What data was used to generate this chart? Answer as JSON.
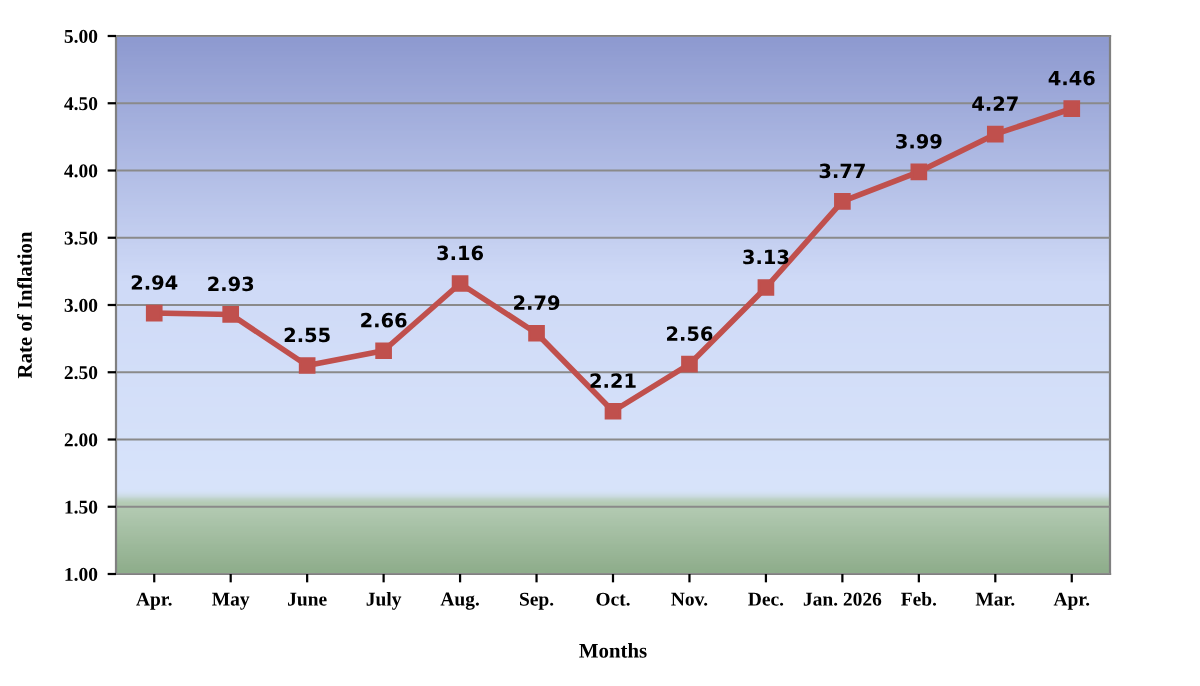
{
  "chart_data": {
    "type": "line",
    "xlabel": "Months",
    "ylabel": "Rate of Inflation",
    "categories": [
      "Apr.",
      "May",
      "June",
      "July",
      "Aug.",
      "Sep.",
      "Oct.",
      "Nov.",
      "Dec.",
      "Jan. 2026",
      "Feb.",
      "Mar.",
      "Apr."
    ],
    "series": [
      {
        "color": "#c0504d",
        "values": [
          2.94,
          2.93,
          2.55,
          2.66,
          3.16,
          2.79,
          2.21,
          2.56,
          3.13,
          3.77,
          3.99,
          4.27,
          4.46
        ]
      }
    ],
    "ylim": [
      1,
      5
    ],
    "yticks": [
      {
        "value": 1,
        "label": "1.00"
      },
      {
        "value": 1.5,
        "label": "1.50"
      },
      {
        "value": 2,
        "label": "2.00"
      },
      {
        "value": 2.5,
        "label": "2.50"
      },
      {
        "value": 3,
        "label": "3.00"
      },
      {
        "value": 3.5,
        "label": "3.50"
      },
      {
        "value": 4,
        "label": "4.00"
      },
      {
        "value": 4.5,
        "label": "4.50"
      },
      {
        "value": 5,
        "label": "5.00"
      }
    ],
    "grid": "y",
    "marker": "square",
    "line_style": "solid",
    "data_labels": true,
    "legend": false
  }
}
